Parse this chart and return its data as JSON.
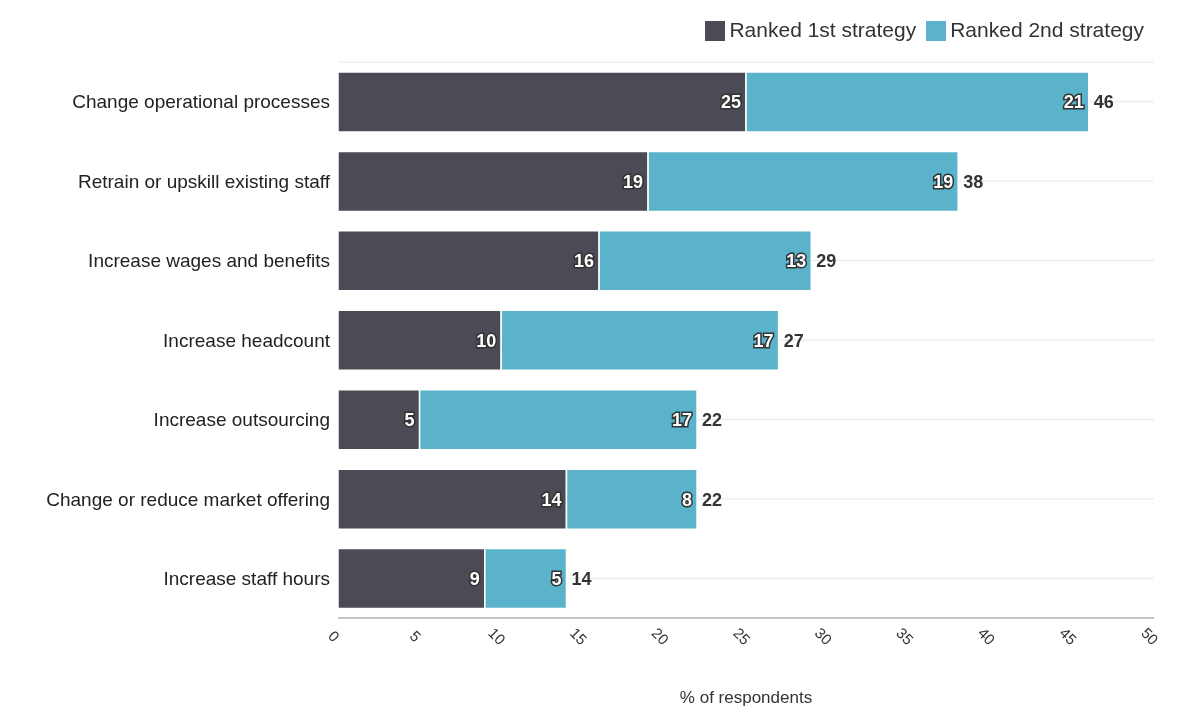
{
  "chart_data": {
    "type": "bar",
    "orientation": "horizontal",
    "stacked": true,
    "xlabel": "% of respondents",
    "categories": [
      "Change operational processes",
      "Retrain or upskill existing staff",
      "Increase wages and benefits",
      "Increase headcount",
      "Increase outsourcing",
      "Change or reduce market offering",
      "Increase staff hours"
    ],
    "series": [
      {
        "name": "Ranked 1st strategy",
        "color": "#4a4b55",
        "values": [
          25,
          19,
          16,
          10,
          5,
          14,
          9
        ]
      },
      {
        "name": "Ranked 2nd strategy",
        "color": "#5ab3cb",
        "values": [
          21,
          19,
          13,
          17,
          17,
          8,
          5
        ]
      }
    ],
    "totals": [
      "46",
      "38",
      "29",
      "27",
      "22",
      "22",
      "14"
    ],
    "data_labels": true,
    "xlim": [
      0,
      50
    ],
    "xticks": [
      0,
      5,
      10,
      15,
      20,
      25,
      30,
      35,
      40,
      45,
      50
    ],
    "grid": "y",
    "legend": "top right"
  }
}
